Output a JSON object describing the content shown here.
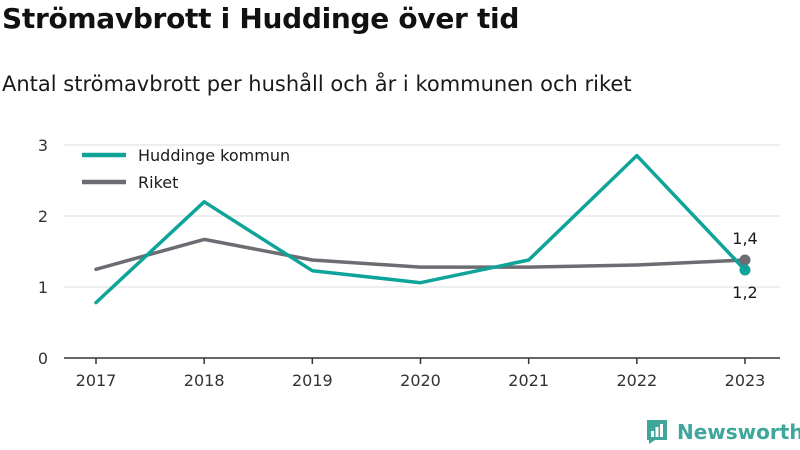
{
  "title": "Strömavbrott i Huddinge över tid",
  "subtitle": "Antal strömavbrott per hushåll och år i kommunen och riket",
  "brand": {
    "name": "Newsworthy",
    "color": "#3ea69b",
    "icon": "newsworthy-logo-icon"
  },
  "chart_data": {
    "type": "line",
    "categories": [
      "2017",
      "2018",
      "2019",
      "2020",
      "2021",
      "2022",
      "2023"
    ],
    "ylim": [
      0,
      3
    ],
    "yticks": [
      0,
      1,
      2,
      3
    ],
    "grid": true,
    "legend_position": "top-left",
    "series": [
      {
        "name": "Huddinge kommun",
        "color": "#0fa49a",
        "values": [
          0.78,
          2.2,
          1.23,
          1.06,
          1.38,
          2.85,
          1.24
        ],
        "end_label": "1,2"
      },
      {
        "name": "Riket",
        "color": "#6d6c72",
        "values": [
          1.25,
          1.67,
          1.38,
          1.28,
          1.28,
          1.31,
          1.38
        ],
        "end_label": "1,4"
      }
    ]
  }
}
